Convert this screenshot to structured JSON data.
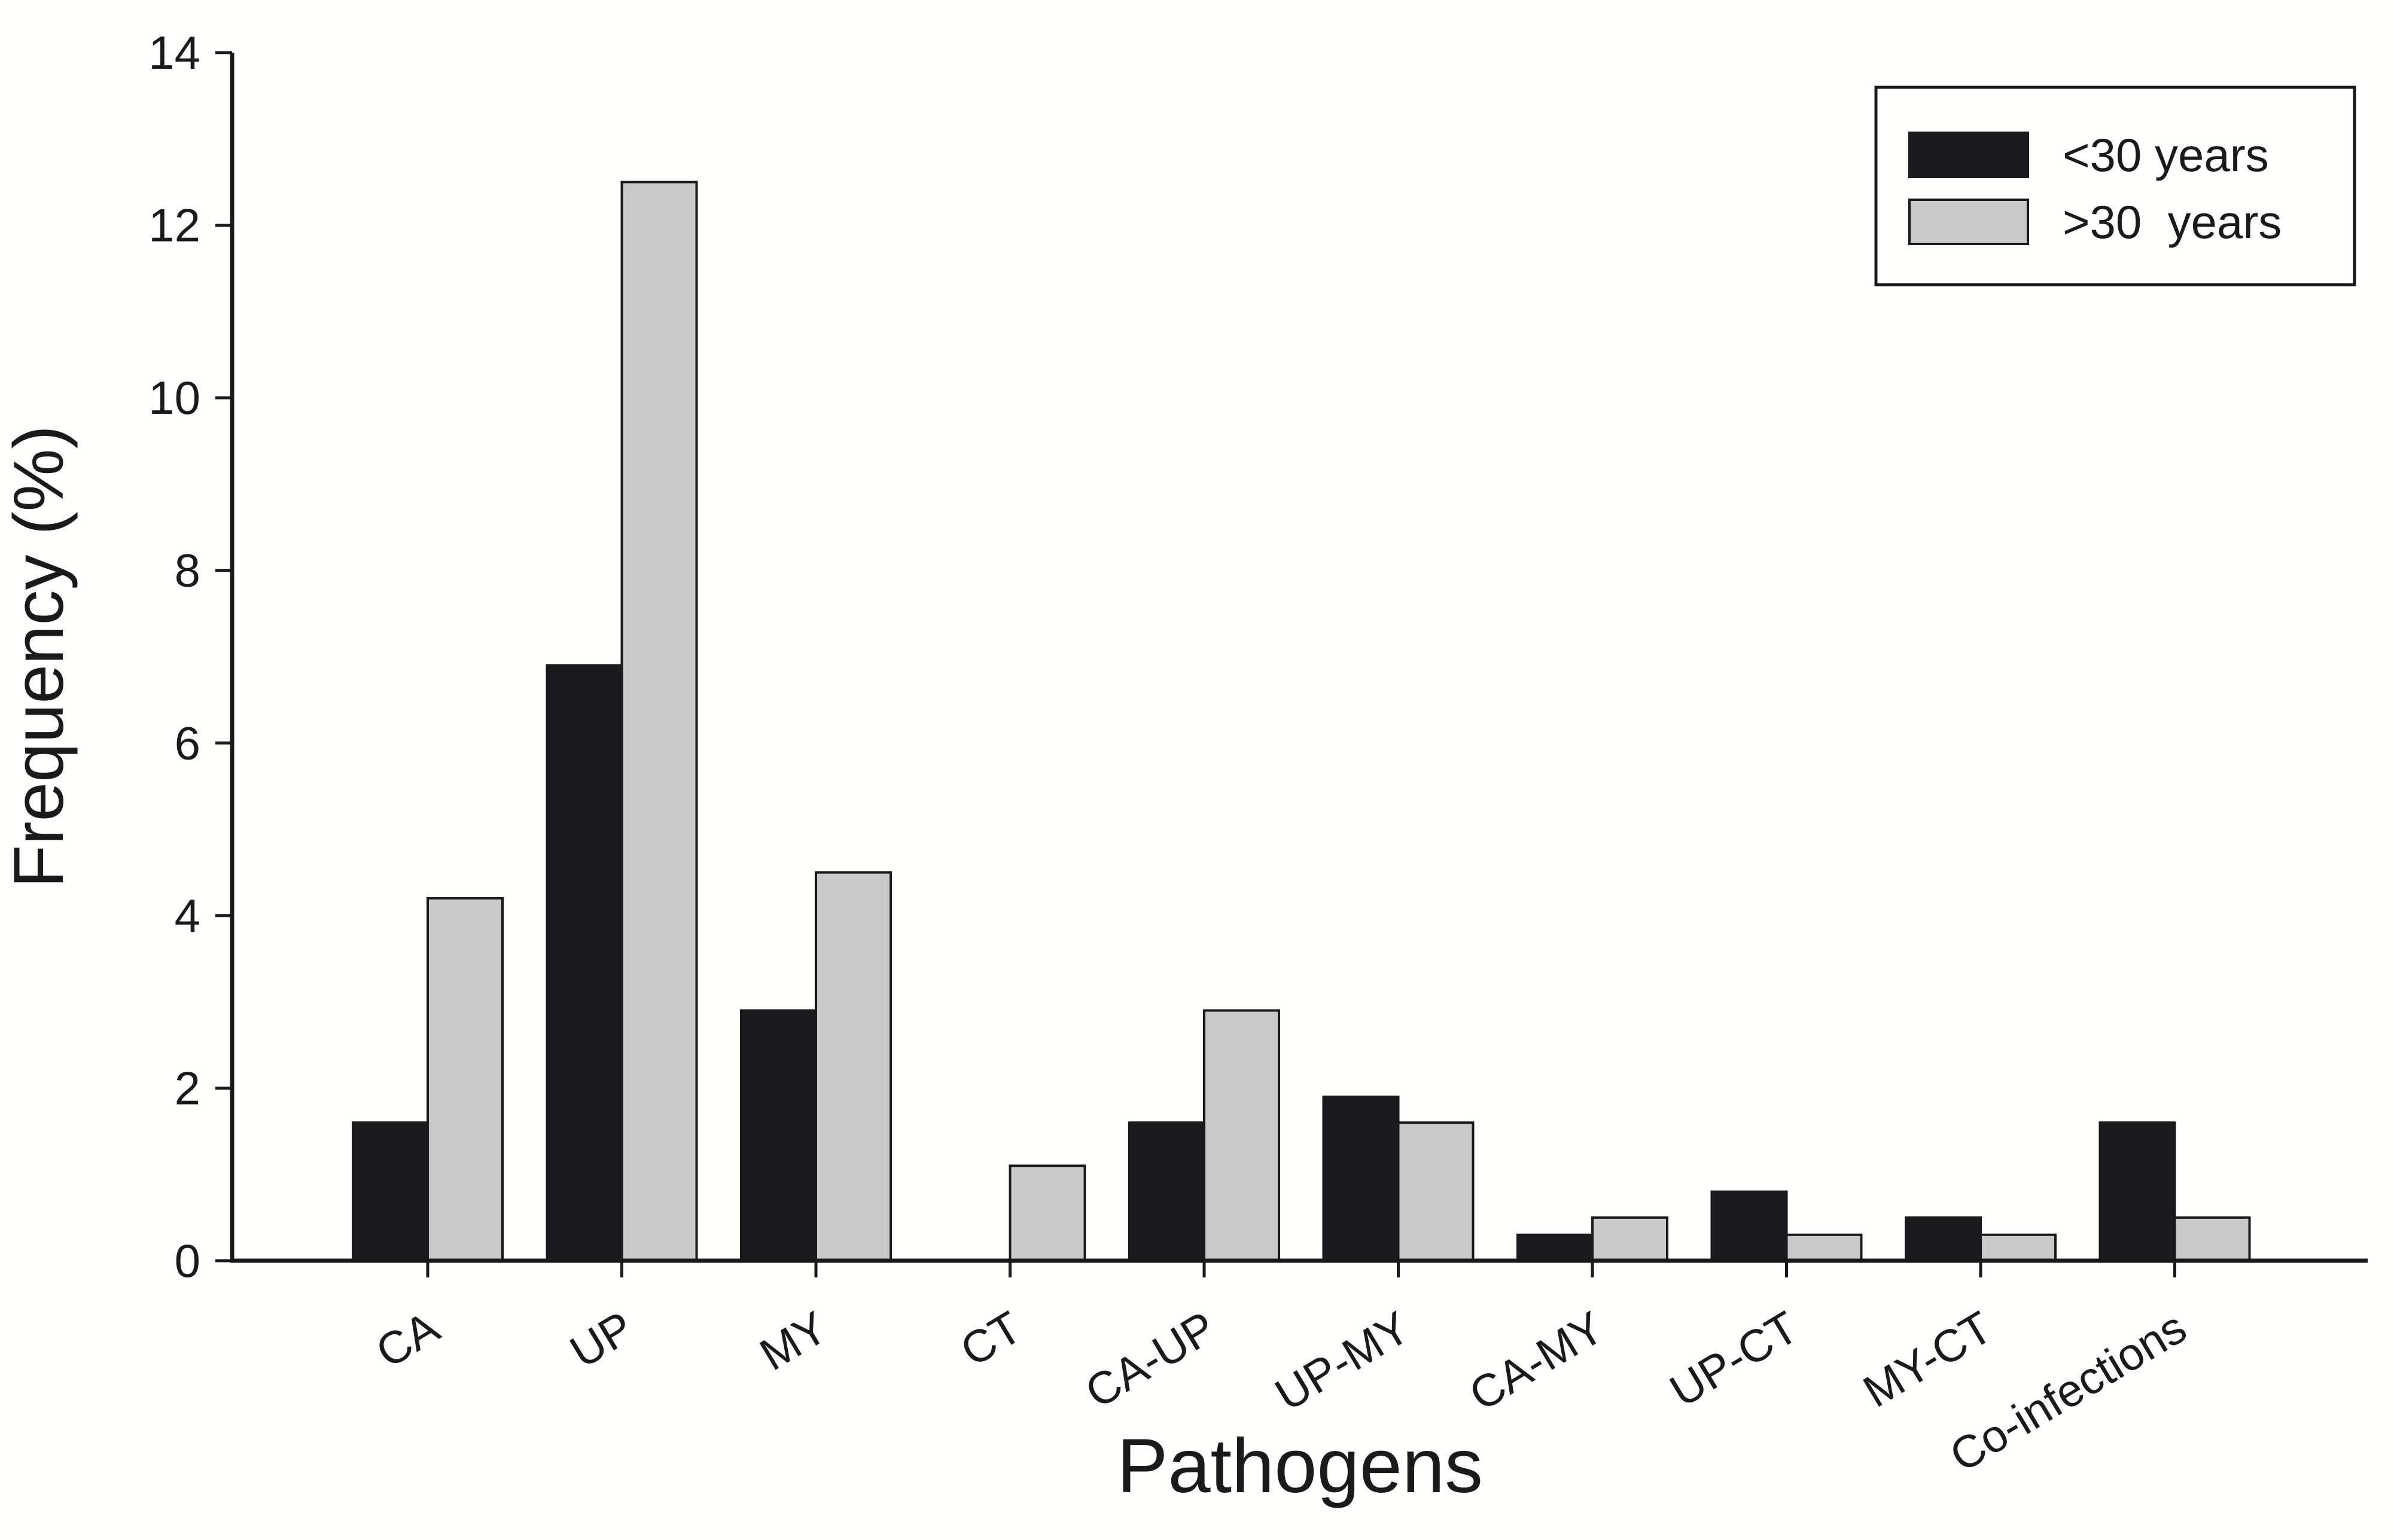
{
  "figure": {
    "background_color": "#fffffe",
    "ink_color": "#1a1a1a"
  },
  "chart_data": {
    "type": "bar",
    "title": "",
    "xlabel": "Pathogens",
    "ylabel": "Frequency (%)",
    "categories": [
      "CA",
      "UP",
      "MY",
      "CT",
      "CA-UP",
      "UP-MY",
      "CA-MY",
      "UP-CT",
      "MY-CT",
      "Co-infections"
    ],
    "series": [
      {
        "name": "<30 years",
        "key": "under30",
        "color": "#1a1a1e",
        "values": [
          1.6,
          6.9,
          2.9,
          0,
          1.6,
          1.9,
          0.3,
          0.8,
          0.5,
          1.6
        ]
      },
      {
        "name": ">30  years",
        "key": "over30",
        "color": "#c9c9c9",
        "values": [
          4.2,
          12.5,
          4.5,
          1.1,
          2.9,
          1.6,
          0.5,
          0.3,
          0.3,
          0.5
        ]
      }
    ],
    "ylim": [
      0,
      14
    ],
    "yticks": [
      0,
      2,
      4,
      6,
      8,
      10,
      12,
      14
    ],
    "grid": false,
    "legend_position": "top-right",
    "bar_outline_color": "#1a1a1a",
    "x_tick_label_rotation_deg": -31
  }
}
